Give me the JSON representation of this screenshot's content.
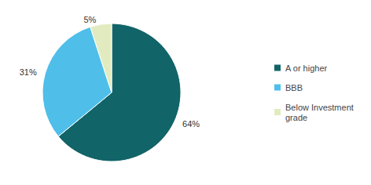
{
  "chart_data": {
    "type": "pie",
    "categories": [
      "A or higher",
      "BBB",
      "Below Investment grade"
    ],
    "values": [
      64,
      31,
      5
    ],
    "value_labels": [
      "64%",
      "31%",
      "5%"
    ],
    "colors": [
      "#116468",
      "#4fbfea",
      "#e2ebc0"
    ],
    "data_labels": true,
    "legend": "right"
  }
}
